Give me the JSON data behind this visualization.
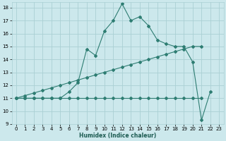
{
  "xlabel": "Humidex (Indice chaleur)",
  "bg_color": "#cce8ec",
  "grid_color": "#aad0d4",
  "line_color": "#2e7d72",
  "xmin": -0.5,
  "xmax": 23.5,
  "ymin": 9,
  "ymax": 18.4,
  "flat_x": [
    0,
    1,
    2,
    3,
    4,
    5,
    6,
    7,
    8,
    9,
    10,
    11,
    12,
    13,
    14,
    15,
    16,
    17,
    18,
    19,
    20,
    21
  ],
  "flat_y": [
    11,
    11,
    11,
    11,
    11,
    11,
    11,
    11,
    11,
    11,
    11,
    11,
    11,
    11,
    11,
    11,
    11,
    11,
    11,
    11,
    11,
    11
  ],
  "linear_x": [
    0,
    1,
    2,
    3,
    4,
    5,
    6,
    7,
    8,
    9,
    10,
    11,
    12,
    13,
    14,
    15,
    16,
    17,
    18,
    19,
    20,
    21
  ],
  "linear_y": [
    11.0,
    11.2,
    11.4,
    11.6,
    11.8,
    12.0,
    12.2,
    12.4,
    12.6,
    12.8,
    13.0,
    13.2,
    13.4,
    13.6,
    13.8,
    14.0,
    14.2,
    14.4,
    14.6,
    14.8,
    15.0,
    15.0
  ],
  "main_x": [
    0,
    1,
    2,
    3,
    4,
    5,
    6,
    7,
    8,
    9,
    10,
    11,
    12,
    13,
    14,
    15,
    16,
    17,
    18,
    19,
    20,
    21,
    22
  ],
  "main_y": [
    11.0,
    11.0,
    11.0,
    11.0,
    11.0,
    11.0,
    11.5,
    12.2,
    14.8,
    14.3,
    16.2,
    17.0,
    18.3,
    17.0,
    17.3,
    16.6,
    15.5,
    15.2,
    15.0,
    15.0,
    13.8,
    9.3,
    11.5
  ],
  "yticks": [
    9,
    10,
    11,
    12,
    13,
    14,
    15,
    16,
    17,
    18
  ],
  "xticks": [
    0,
    1,
    2,
    3,
    4,
    5,
    6,
    7,
    8,
    9,
    10,
    11,
    12,
    13,
    14,
    15,
    16,
    17,
    18,
    19,
    20,
    21,
    22,
    23
  ],
  "xlabel_fontsize": 5.5,
  "tick_fontsize": 5.0,
  "linewidth": 0.8,
  "markersize": 2.0
}
